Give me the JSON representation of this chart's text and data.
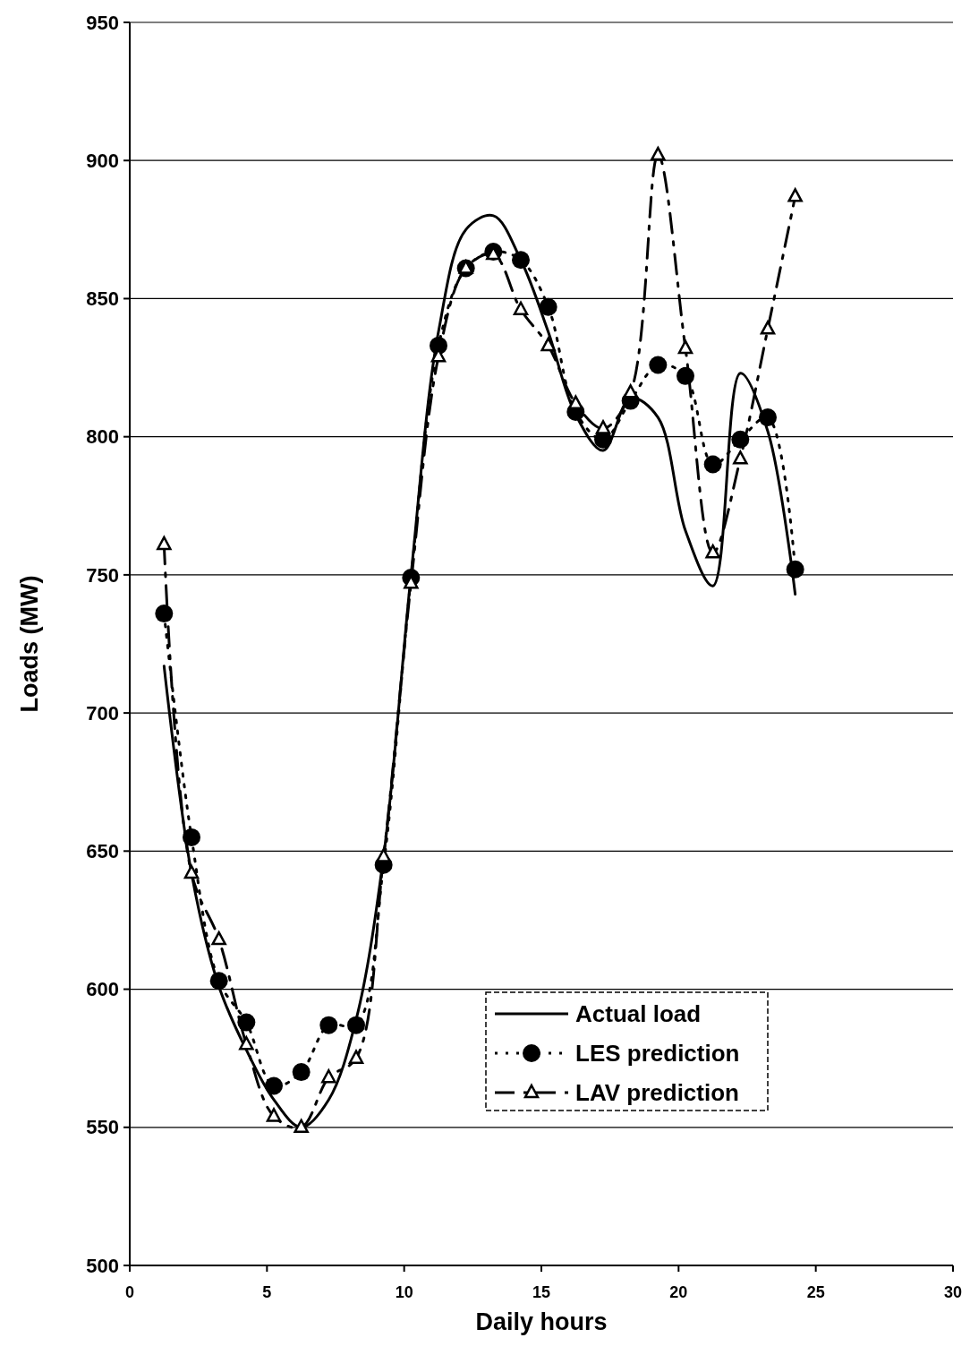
{
  "chart_data": {
    "type": "line",
    "xlabel": "Daily hours",
    "ylabel": "Loads (MW)",
    "x": [
      1.25,
      2.25,
      3.25,
      4.25,
      5.25,
      6.25,
      7.25,
      8.25,
      9.25,
      10.25,
      11.25,
      12.25,
      13.25,
      14.25,
      15.25,
      16.25,
      17.25,
      18.25,
      19.25,
      20.25,
      21.25,
      22.25,
      23.25,
      24.25
    ],
    "series": [
      {
        "name": "Actual load",
        "color": "#000000",
        "line_style": "solid",
        "marker": "none",
        "values": [
          717,
          642,
          601,
          578,
          560,
          550,
          560,
          589,
          648,
          750,
          838,
          875,
          880,
          864,
          838,
          808,
          795,
          814,
          807,
          766,
          746,
          823,
          802,
          743
        ]
      },
      {
        "name": "LES prediction",
        "color": "#000000",
        "line_style": "dotted",
        "marker": "circle",
        "values": [
          736,
          655,
          603,
          588,
          565,
          570,
          587,
          587,
          645,
          749,
          833,
          861,
          867,
          864,
          847,
          809,
          799,
          813,
          826,
          822,
          790,
          799,
          807,
          752
        ]
      },
      {
        "name": "LAV prediction",
        "color": "#000000",
        "line_style": "dashed",
        "marker": "triangle",
        "values": [
          761,
          642,
          618,
          580,
          554,
          550,
          568,
          575,
          648,
          747,
          829,
          861,
          866,
          846,
          833,
          812,
          803,
          816,
          902,
          832,
          758,
          792,
          839,
          887
        ]
      }
    ],
    "xlim": [
      0,
      30
    ],
    "xticks": [
      0,
      5,
      10,
      15,
      20,
      25,
      30
    ],
    "ylim": [
      500,
      950
    ],
    "yticks": [
      500,
      550,
      600,
      650,
      700,
      750,
      800,
      850,
      900,
      950
    ],
    "grid": "y",
    "legend": "bottom"
  }
}
